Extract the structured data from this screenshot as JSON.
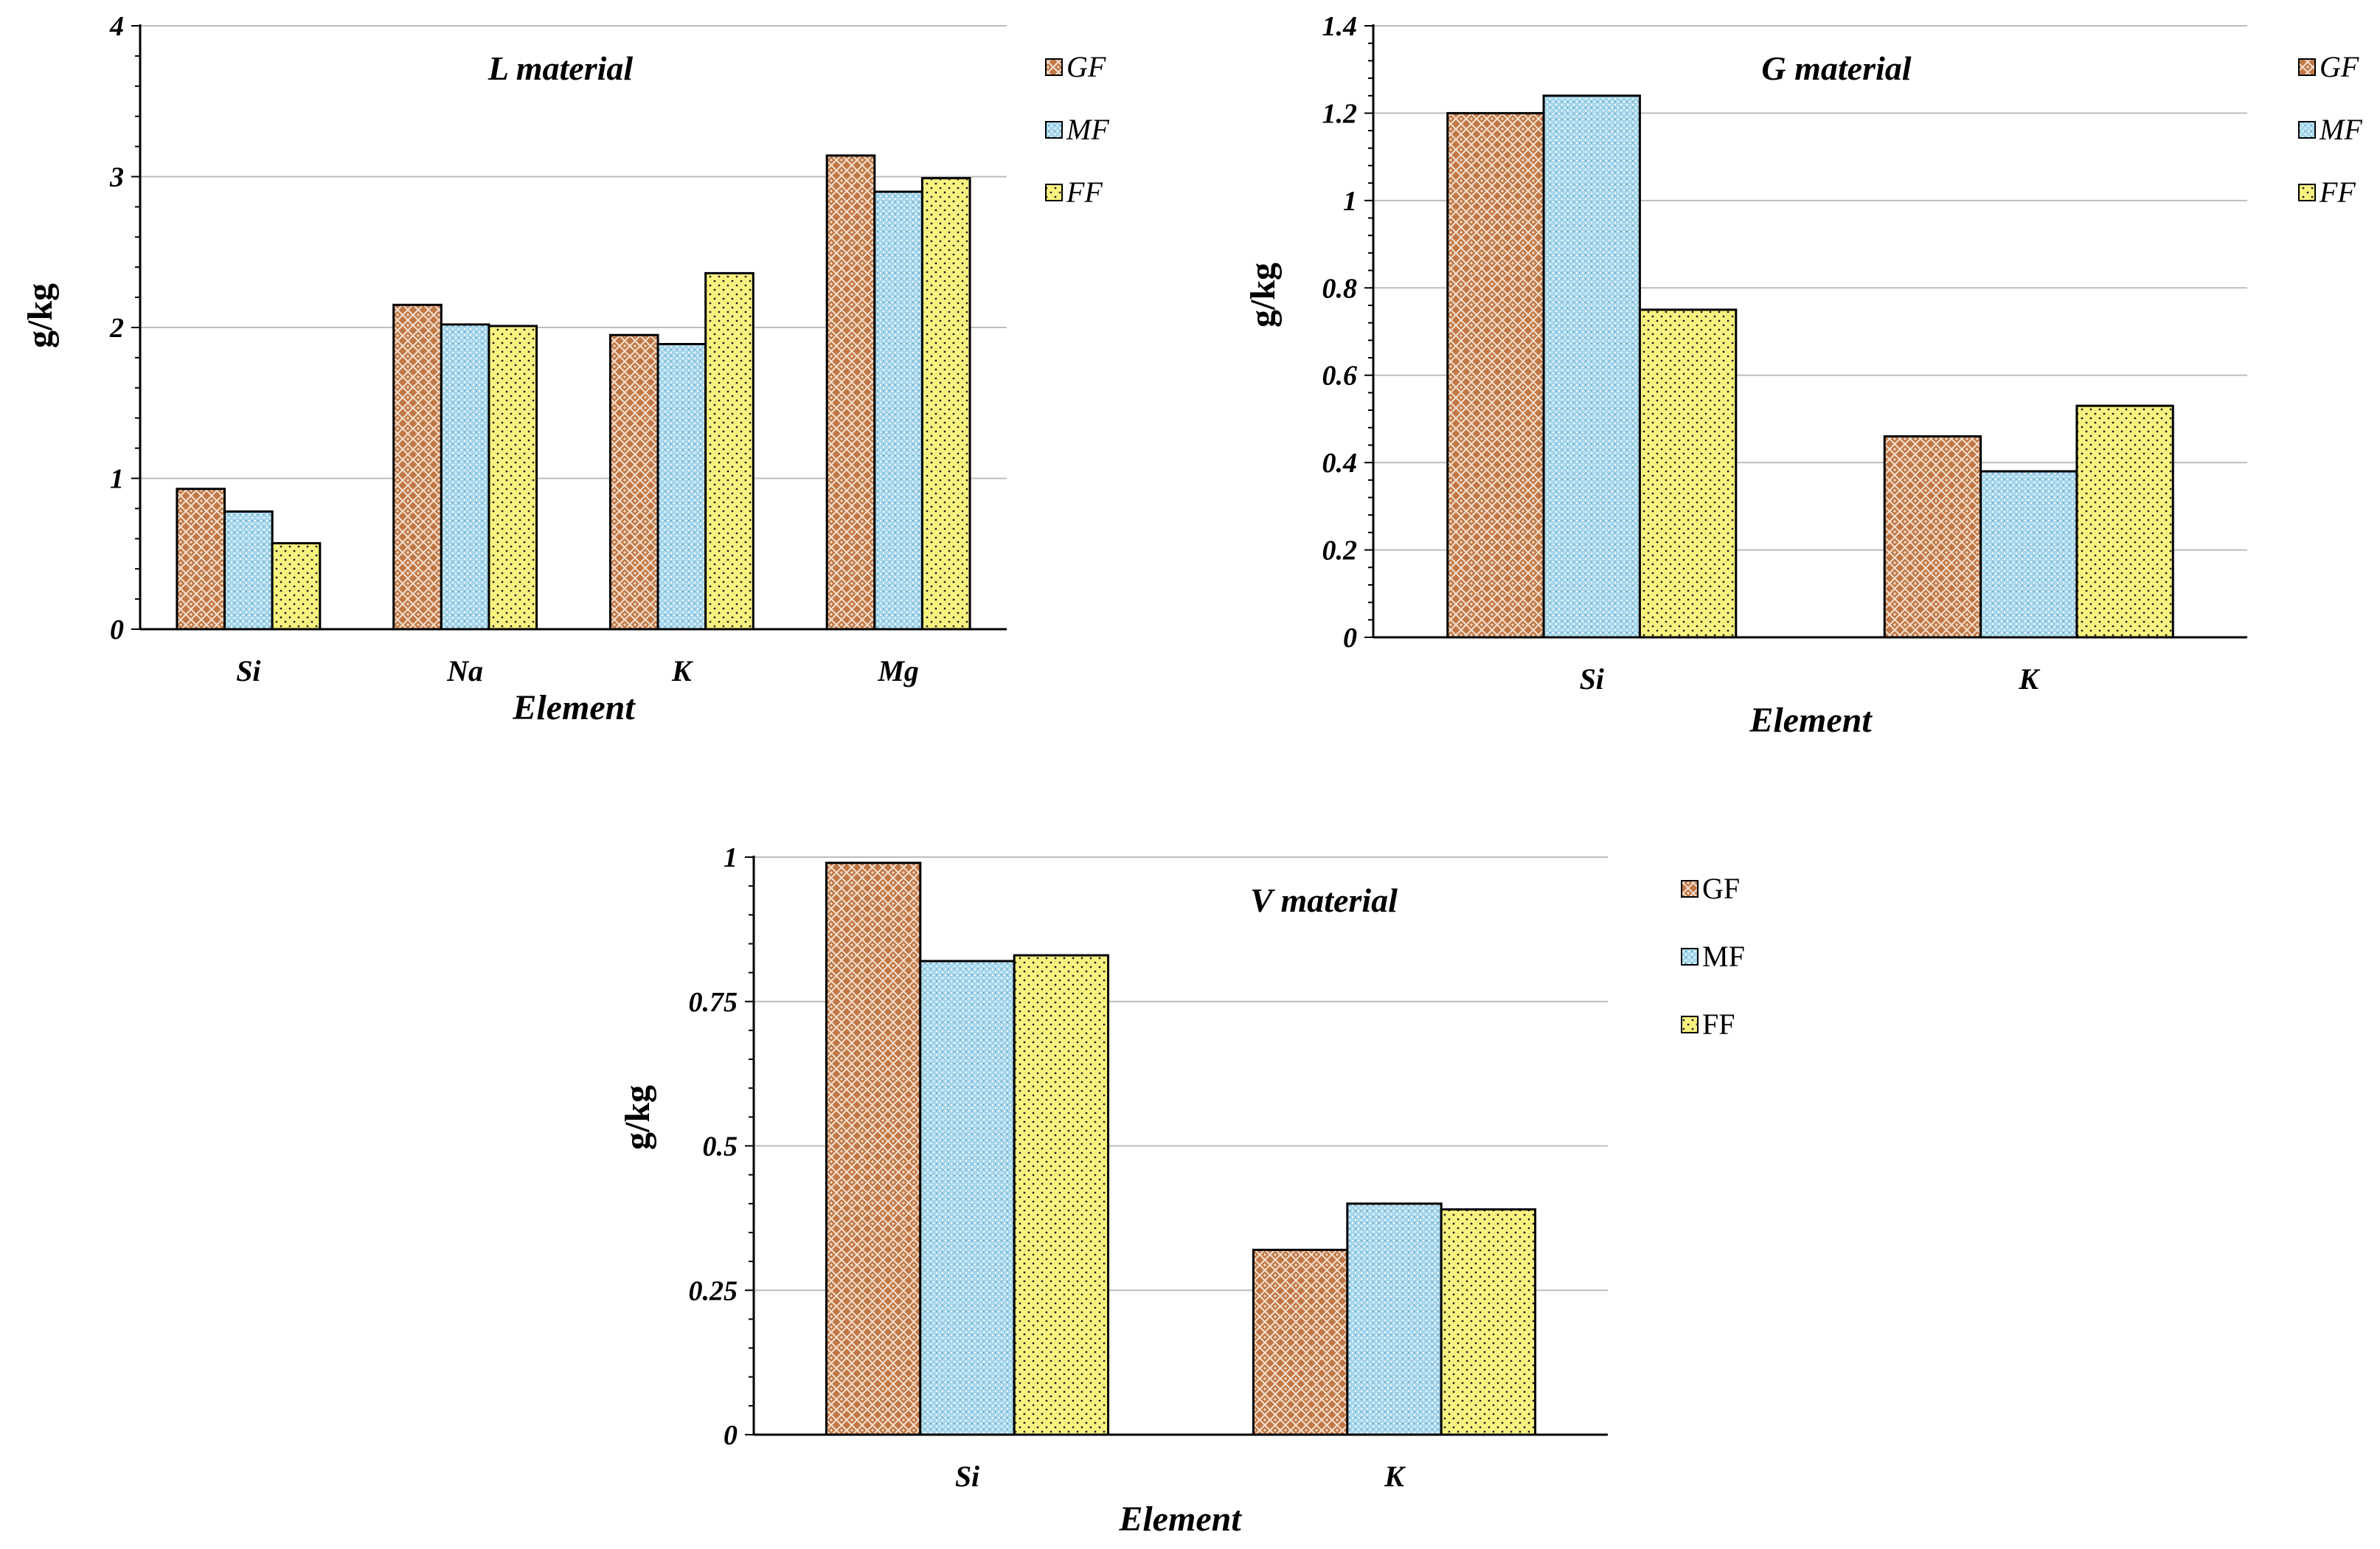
{
  "colors": {
    "GF": "#c07846",
    "MF": "#a7d7ec",
    "FF": "#f8f280"
  },
  "chart_data": [
    {
      "type": "bar",
      "title": "L material",
      "xlabel": "Element",
      "ylabel": "g/kg",
      "categories": [
        "Si",
        "Na",
        "K",
        "Mg"
      ],
      "series": [
        {
          "name": "GF",
          "values": [
            0.93,
            2.15,
            1.95,
            3.14
          ]
        },
        {
          "name": "MF",
          "values": [
            0.78,
            2.02,
            1.89,
            2.9
          ]
        },
        {
          "name": "FF",
          "values": [
            0.57,
            2.01,
            2.36,
            2.99
          ]
        }
      ],
      "ylim": [
        0,
        4
      ],
      "yticks": [
        "0",
        "1",
        "2",
        "3",
        "4"
      ],
      "legend_labels": [
        "GF",
        "MF",
        "FF"
      ],
      "legend": "right",
      "grid": true
    },
    {
      "type": "bar",
      "title": "G material",
      "xlabel": "Element",
      "ylabel": "g/kg",
      "categories": [
        "Si",
        "K"
      ],
      "series": [
        {
          "name": "GF",
          "values": [
            1.2,
            0.46
          ]
        },
        {
          "name": "MF",
          "values": [
            1.24,
            0.38
          ]
        },
        {
          "name": "FF",
          "values": [
            0.75,
            0.53
          ]
        }
      ],
      "ylim": [
        0,
        1.4
      ],
      "yticks": [
        "0",
        "0.2",
        "0.4",
        "0.6",
        "0.8",
        "1",
        "1.2",
        "1.4"
      ],
      "legend_labels": [
        "GF",
        "MF",
        "FF"
      ],
      "legend": "right",
      "grid": true
    },
    {
      "type": "bar",
      "title": "V material",
      "xlabel": "Element",
      "ylabel": "g/kg",
      "categories": [
        "Si",
        "K"
      ],
      "series": [
        {
          "name": "GF",
          "values": [
            0.99,
            0.32
          ]
        },
        {
          "name": "MF",
          "values": [
            0.82,
            0.4
          ]
        },
        {
          "name": "FF",
          "values": [
            0.83,
            0.39
          ]
        }
      ],
      "ylim": [
        0,
        1
      ],
      "yticks": [
        "0",
        "0.25",
        "0.5",
        "0.75",
        "1"
      ],
      "legend_labels": [
        "GF",
        "MF",
        "FF"
      ],
      "legend": "right",
      "grid": true
    }
  ]
}
